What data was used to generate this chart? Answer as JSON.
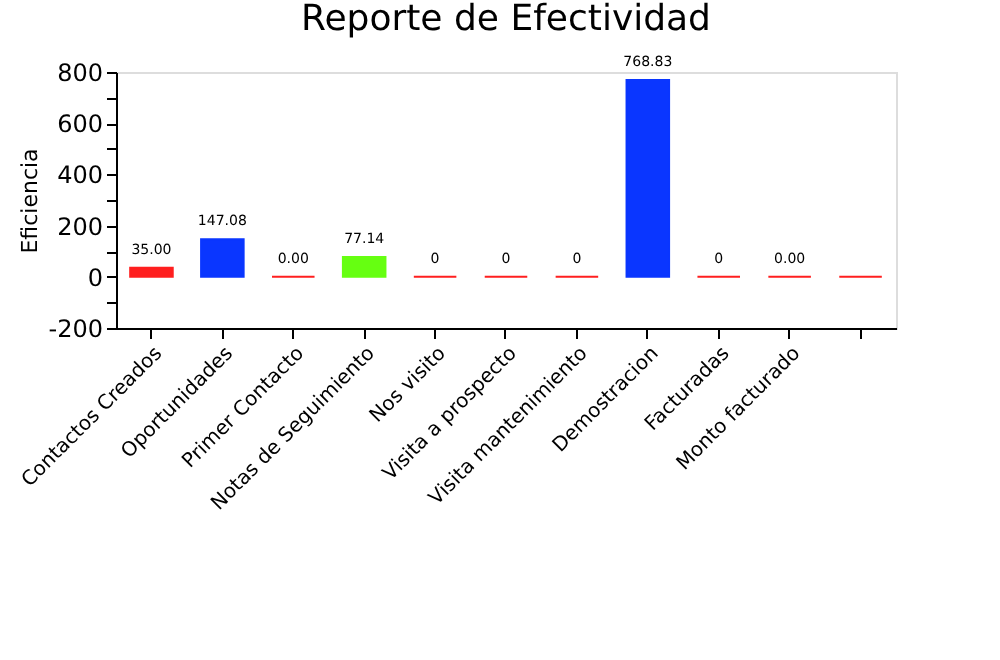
{
  "chart_data": {
    "type": "bar",
    "title": "Reporte de Efectividad",
    "ylabel": "Eficiencia",
    "categories": [
      "Contactos Creados",
      "Oportunidades",
      "Primer Contacto",
      "Notas de Seguimiento",
      "Nos visito",
      "Visita a prospecto",
      "Visita mantenimiento",
      "Demostracion",
      "Facturadas",
      "Monto facturado",
      null
    ],
    "values": [
      35,
      147.08,
      0,
      77.14,
      0,
      0,
      0,
      768.83,
      0,
      0,
      0
    ],
    "value_labels": [
      "35.00",
      "147.08",
      "0.00",
      "77.14",
      "0",
      "0",
      "0",
      "768.83",
      "0",
      "0.00",
      null
    ],
    "colors": [
      "#ff1f1f",
      "#0a36ff",
      "#ff1f1f",
      "#66ff11",
      "#ff1f1f",
      "#ff1f1f",
      "#ff1f1f",
      "#0a36ff",
      "#ff1f1f",
      "#ff1f1f",
      "#ff1f1f"
    ],
    "ylim": [
      -200,
      800
    ],
    "yticks": [
      -200,
      {
        "value": -100,
        "label": null
      },
      0,
      {
        "value": 100,
        "label": null
      },
      200,
      {
        "value": 300,
        "label": null
      },
      400,
      {
        "value": 500,
        "label": null
      },
      600,
      {
        "value": 700,
        "label": null
      },
      800
    ],
    "grid": false
  }
}
